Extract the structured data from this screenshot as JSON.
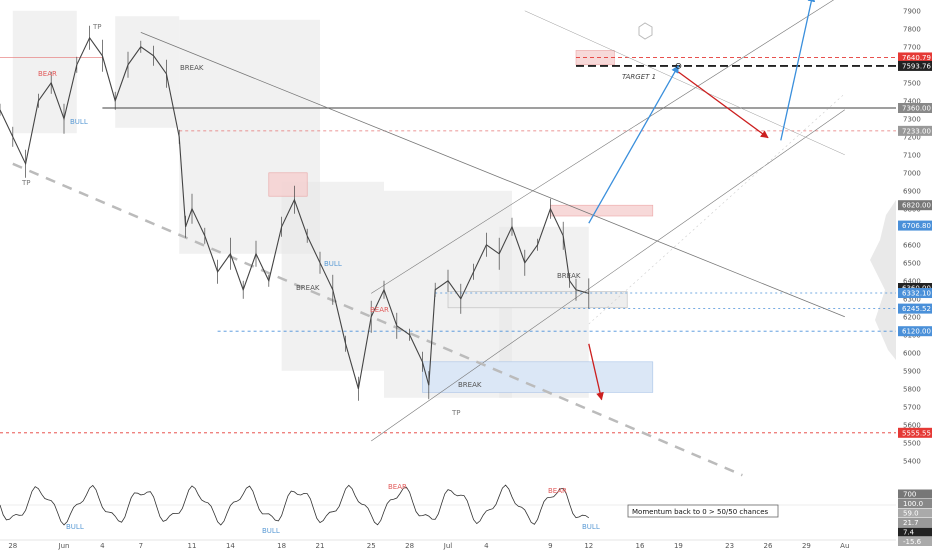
{
  "colors": {
    "background": "#ffffff",
    "candle": "#444444",
    "bear": "#e25b5b",
    "bull": "#5b9bd5",
    "blue_arrow": "#3a8fdc",
    "red_arrow": "#cc1f1f",
    "resistance_dark": "#222222",
    "support_red": "#e53935",
    "grid_box": "#e6e6e6"
  },
  "chart_data": {
    "type": "line",
    "price_axis": {
      "ylim": [
        5360,
        7960
      ],
      "ticks": [
        5400,
        5500,
        5600,
        5700,
        5800,
        5900,
        6000,
        6100,
        6200,
        6300,
        6400,
        6500,
        6600,
        6700,
        6800,
        6900,
        7000,
        7100,
        7200,
        7300,
        7400,
        7500,
        7600,
        7700,
        7800,
        7900
      ]
    },
    "time_axis": {
      "xlim": [
        0,
        70
      ],
      "ticks": [
        {
          "t": 1,
          "label": "28"
        },
        {
          "t": 5,
          "label": "Jun"
        },
        {
          "t": 8,
          "label": "4"
        },
        {
          "t": 11,
          "label": "7"
        },
        {
          "t": 15,
          "label": "11"
        },
        {
          "t": 18,
          "label": "14"
        },
        {
          "t": 22,
          "label": "18"
        },
        {
          "t": 25,
          "label": "21"
        },
        {
          "t": 29,
          "label": "25"
        },
        {
          "t": 32,
          "label": "28"
        },
        {
          "t": 35,
          "label": "Jul"
        },
        {
          "t": 38,
          "label": "4"
        },
        {
          "t": 43,
          "label": "9"
        },
        {
          "t": 46,
          "label": "12"
        },
        {
          "t": 50,
          "label": "16"
        },
        {
          "t": 53,
          "label": "19"
        },
        {
          "t": 57,
          "label": "23"
        },
        {
          "t": 60,
          "label": "26"
        },
        {
          "t": 63,
          "label": "29"
        },
        {
          "t": 66,
          "label": "Au"
        }
      ]
    },
    "price_series": [
      [
        0,
        7350
      ],
      [
        1,
        7200
      ],
      [
        2,
        7050
      ],
      [
        3,
        7400
      ],
      [
        4,
        7500
      ],
      [
        5,
        7300
      ],
      [
        6,
        7600
      ],
      [
        7,
        7750
      ],
      [
        8,
        7650
      ],
      [
        9,
        7400
      ],
      [
        10,
        7600
      ],
      [
        11,
        7700
      ],
      [
        12,
        7650
      ],
      [
        13,
        7550
      ],
      [
        14,
        7200
      ],
      [
        14.5,
        6700
      ],
      [
        15,
        6800
      ],
      [
        16,
        6650
      ],
      [
        17,
        6450
      ],
      [
        18,
        6550
      ],
      [
        19,
        6350
      ],
      [
        20,
        6550
      ],
      [
        21,
        6400
      ],
      [
        22,
        6700
      ],
      [
        23,
        6850
      ],
      [
        24,
        6650
      ],
      [
        25,
        6500
      ],
      [
        26,
        6350
      ],
      [
        27,
        6050
      ],
      [
        28,
        5800
      ],
      [
        29,
        6200
      ],
      [
        30,
        6350
      ],
      [
        31,
        6150
      ],
      [
        32,
        6100
      ],
      [
        33,
        5950
      ],
      [
        33.5,
        5820
      ],
      [
        34,
        6350
      ],
      [
        35,
        6400
      ],
      [
        36,
        6300
      ],
      [
        37,
        6450
      ],
      [
        38,
        6600
      ],
      [
        39,
        6550
      ],
      [
        40,
        6700
      ],
      [
        41,
        6500
      ],
      [
        42,
        6600
      ],
      [
        43,
        6800
      ],
      [
        44,
        6650
      ],
      [
        44.5,
        6400
      ],
      [
        45,
        6350
      ],
      [
        46,
        6330
      ]
    ],
    "price_labels": [
      {
        "value": 7640.79,
        "text": "7640.79",
        "bg": "#e53935"
      },
      {
        "value": 7593.76,
        "text": "7593.76",
        "bg": "#222222"
      },
      {
        "value": 7360.0,
        "text": "7360.00",
        "bg": "#888888"
      },
      {
        "value": 7233.0,
        "text": "7233.00",
        "bg": "#999999"
      },
      {
        "value": 6820.0,
        "text": "6820.00",
        "bg": "#777777"
      },
      {
        "value": 6706.8,
        "text": "6706.80",
        "bg": "#4a90d9"
      },
      {
        "value": 6360.0,
        "text": "6360.00",
        "bg": "#222222"
      },
      {
        "value": 6332.1,
        "text": "6332.10",
        "bg": "#4a90d9"
      },
      {
        "value": 6245.52,
        "text": "6245.52",
        "bg": "#4a90d9"
      },
      {
        "value": 6120.0,
        "text": "6120.00",
        "bg": "#4a90d9"
      },
      {
        "value": 5555.55,
        "text": "5555.55",
        "bg": "#e53935"
      }
    ],
    "oscillator_labels": [
      {
        "text": "700",
        "bg": "#777777"
      },
      {
        "text": "100.0",
        "bg": "#888888"
      },
      {
        "text": "59.0",
        "bg": "#aaaaaa"
      },
      {
        "text": "21.7",
        "bg": "#999999"
      },
      {
        "text": "7.4",
        "bg": "#222222"
      },
      {
        "text": "-15.6",
        "bg": "#aaaaaa"
      }
    ],
    "annotations": {
      "target": "TARGET 1",
      "momentum_note": "Momentum back to 0 > 50/50 chances",
      "bear": "BEAR",
      "bull": "BULL",
      "break": "BREAK",
      "tp": "TP"
    }
  }
}
